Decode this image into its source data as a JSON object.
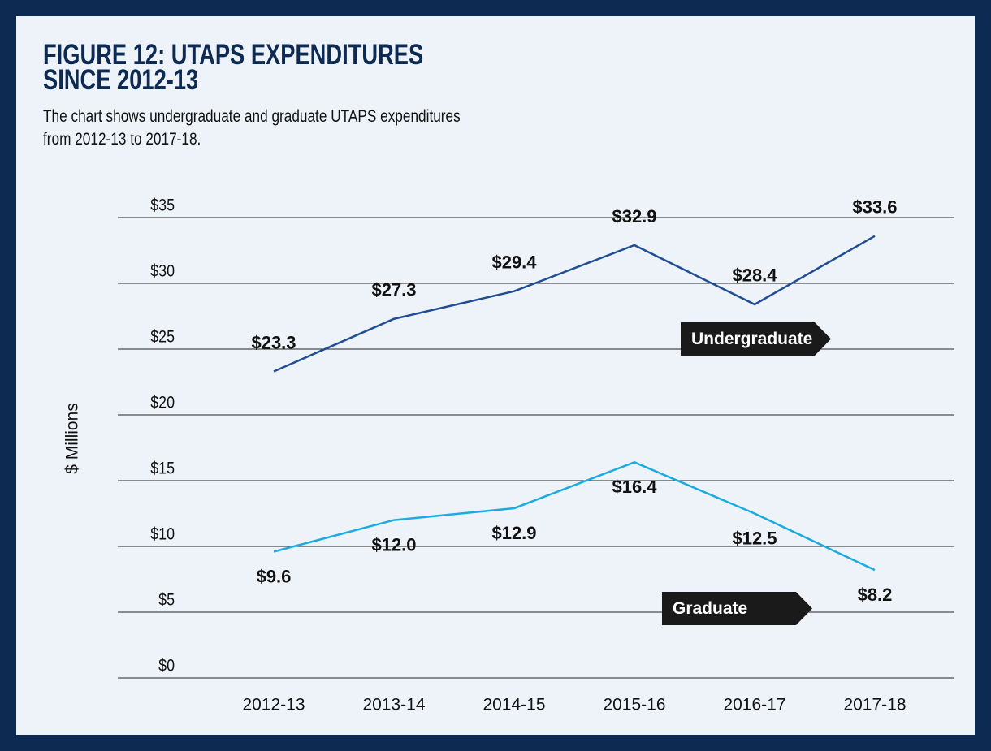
{
  "chart_data": {
    "type": "line",
    "title": "FIGURE 12: UTAPS EXPENDITURES SINCE 2012-13",
    "subtitle": "The chart shows undergraduate and graduate UTAPS expenditures from 2012-13 to 2017-18.",
    "y_label": "$ Millions",
    "categories": [
      "2012-13",
      "2013-14",
      "2014-15",
      "2015-16",
      "2016-17",
      "2017-18"
    ],
    "series": [
      {
        "name": "Undergraduate",
        "color": "#1f4e96",
        "values": [
          23.3,
          27.3,
          29.4,
          32.9,
          28.4,
          33.6
        ],
        "value_labels": [
          "$23.3",
          "$27.3",
          "$29.4",
          "$32.9",
          "$28.4",
          "$33.6"
        ]
      },
      {
        "name": "Graduate",
        "color": "#1aace0",
        "values": [
          9.6,
          12.0,
          12.9,
          16.4,
          12.5,
          8.2
        ],
        "value_labels": [
          "$9.6",
          "$12.0",
          "$12.9",
          "$16.4",
          "$12.5",
          "$8.2"
        ]
      }
    ],
    "ylim": [
      0,
      35
    ],
    "yticks": [
      {
        "value": 0,
        "label": "$0"
      },
      {
        "value": 5,
        "label": "$5"
      },
      {
        "value": 10,
        "label": "$10"
      },
      {
        "value": 15,
        "label": "$15"
      },
      {
        "value": 20,
        "label": "$20"
      },
      {
        "value": 25,
        "label": "$25"
      },
      {
        "value": 30,
        "label": "$30"
      },
      {
        "value": 35,
        "label": "$35"
      }
    ],
    "grid": true
  }
}
